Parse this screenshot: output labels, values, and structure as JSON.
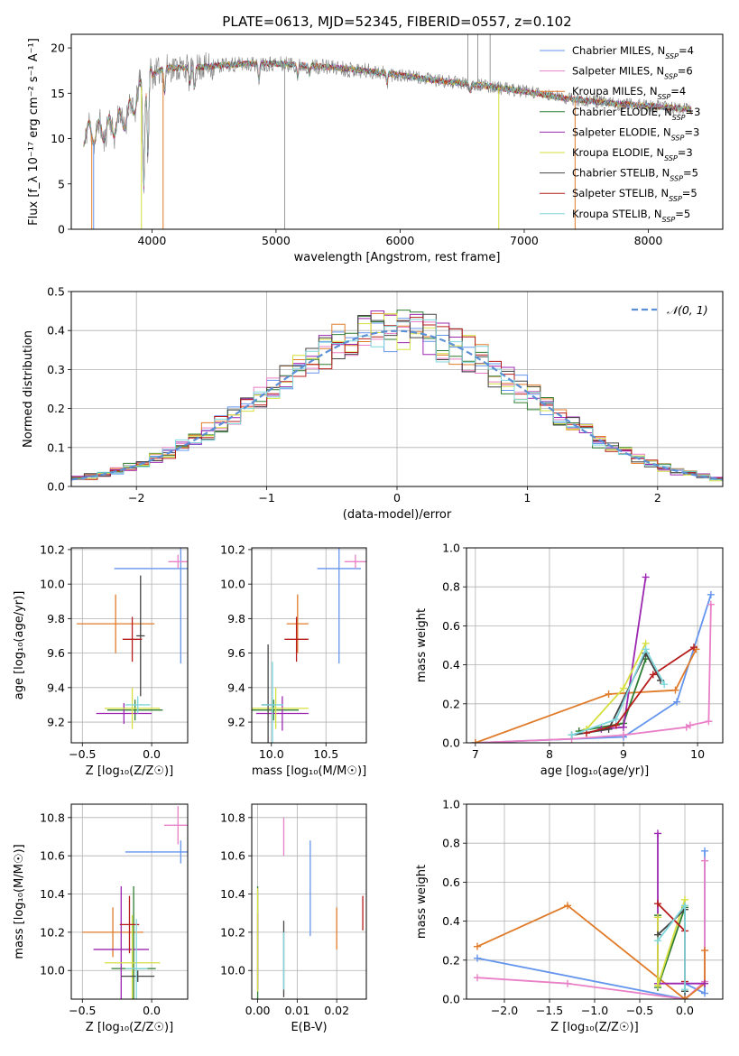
{
  "figure": {
    "title": "PLATE=0613, MJD=52345, FIBERID=0557, z=0.102"
  },
  "colors": {
    "Chabrier MILES": "#6495ed",
    "Salpeter MILES": "#e97fc6",
    "Kroupa MILES": "#e07b2a",
    "Chabrier ELODIE": "#2e7d32",
    "Salpeter ELODIE": "#9c27b0",
    "Kroupa ELODIE": "#d6df3f",
    "Chabrier STELIB": "#444444",
    "Salpeter STELIB": "#b71c1c",
    "Kroupa STELIB": "#7fd6dc",
    "spectrum": "#808080",
    "normal": "#5b8fd6",
    "grid": "#b0b0b0"
  },
  "chart_data": [
    {
      "id": "spectrum",
      "type": "line",
      "xlabel": "wavelength [Angstrom, rest frame]",
      "ylabel": "Flux [f_λ 10⁻¹⁷ erg cm⁻² s⁻¹ A⁻¹]",
      "xlim": [
        3350,
        8600
      ],
      "ylim": [
        0,
        21.5
      ],
      "xticks": [
        4000,
        5000,
        6000,
        7000,
        8000
      ],
      "yticks": [
        0,
        5,
        10,
        15,
        20
      ],
      "grid": false,
      "legend": "top-right",
      "legend_entries": [
        "Chabrier MILES, N_SSP=4",
        "Salpeter MILES, N_SSP=6",
        "Kroupa MILES, N_SSP=4",
        "Chabrier ELODIE, N_SSP=3",
        "Salpeter ELODIE, N_SSP=3",
        "Kroupa ELODIE, N_SSP=3",
        "Chabrier STELIB, N_SSP=5",
        "Salpeter STELIB, N_SSP=5",
        "Kroupa STELIB, N_SSP=5"
      ],
      "continuum": [
        [
          3450,
          10.5
        ],
        [
          3600,
          10.8
        ],
        [
          3700,
          11.5
        ],
        [
          3800,
          12.5
        ],
        [
          3900,
          15
        ],
        [
          4000,
          17
        ],
        [
          4100,
          17.8
        ],
        [
          4300,
          17.8
        ],
        [
          4500,
          18
        ],
        [
          4700,
          18.2
        ],
        [
          4900,
          18.3
        ],
        [
          5100,
          18.2
        ],
        [
          5300,
          18
        ],
        [
          5500,
          17.8
        ],
        [
          5700,
          17.5
        ],
        [
          5900,
          17.2
        ],
        [
          6100,
          16.8
        ],
        [
          6300,
          16.4
        ],
        [
          6500,
          16.1
        ],
        [
          6700,
          15.8
        ],
        [
          6900,
          15.4
        ],
        [
          7100,
          15
        ],
        [
          7300,
          14.5
        ],
        [
          7500,
          14.2
        ],
        [
          7700,
          13.9
        ],
        [
          7900,
          13.7
        ],
        [
          8100,
          13.5
        ],
        [
          8350,
          13.2
        ]
      ],
      "absorption_lines": [
        [
          3934,
          5
        ],
        [
          3969,
          7
        ],
        [
          4102,
          15
        ],
        [
          4304,
          16
        ],
        [
          4341,
          15.5
        ],
        [
          4861,
          16.5
        ],
        [
          5175,
          16.8
        ],
        [
          5270,
          17
        ],
        [
          5894,
          16.2
        ],
        [
          6563,
          15.2
        ],
        [
          8500,
          12.5
        ],
        [
          8542,
          12.3
        ],
        [
          8662,
          12.6
        ]
      ],
      "model_dropouts": [
        [
          3515,
          "#e07b2a"
        ],
        [
          3530,
          "#6495ed"
        ],
        [
          3915,
          "#d6df3f"
        ],
        [
          4090,
          "#e07b2a"
        ],
        [
          6795,
          "#d6df3f"
        ],
        [
          7410,
          "#e07b2a"
        ]
      ],
      "data_spikes": [
        [
          5070,
          0
        ],
        [
          6545,
          21.5
        ],
        [
          6625,
          21.5
        ],
        [
          6725,
          21.5
        ]
      ]
    },
    {
      "id": "residuals",
      "type": "histogram",
      "xlabel": "(data-model)/error",
      "ylabel": "Normed distribution",
      "xlim": [
        -2.5,
        2.5
      ],
      "ylim": [
        0,
        0.5
      ],
      "xticks": [
        -2,
        -1,
        0,
        1,
        2
      ],
      "yticks": [
        0,
        0.1,
        0.2,
        0.3,
        0.4,
        0.5
      ],
      "grid": true,
      "legend": "top-right",
      "legend_entries": [
        "𝒩(0, 1)"
      ],
      "bin_width": 0.1,
      "models": [
        "Chabrier MILES",
        "Salpeter MILES",
        "Kroupa MILES",
        "Chabrier ELODIE",
        "Salpeter ELODIE",
        "Kroupa ELODIE",
        "Chabrier STELIB",
        "Salpeter STELIB",
        "Kroupa STELIB"
      ]
    },
    {
      "id": "age-vs-Z",
      "type": "errorbar",
      "xlabel": "Z [log₁₀(Z/Z☉)]",
      "ylabel": "age  [log₁₀(age/yr)]",
      "xlim": [
        -0.58,
        0.26
      ],
      "ylim": [
        9.08,
        10.21
      ],
      "xticks": [
        -0.5,
        0.0
      ],
      "yticks": [
        9.2,
        9.4,
        9.6,
        9.8,
        10.0,
        10.2
      ],
      "grid": true,
      "points": [
        {
          "model": "Chabrier MILES",
          "x": 0.21,
          "y": 10.09,
          "xerr": 0.48,
          "yerr": 0.55
        },
        {
          "model": "Salpeter MILES",
          "x": 0.19,
          "y": 10.13,
          "xerr": 0.07,
          "yerr": 0.04
        },
        {
          "model": "Kroupa MILES",
          "x": -0.26,
          "y": 9.77,
          "xerr": 0.28,
          "yerr": 0.17
        },
        {
          "model": "Chabrier ELODIE",
          "x": -0.12,
          "y": 9.27,
          "xerr": 0.2,
          "yerr": 0.06
        },
        {
          "model": "Salpeter ELODIE",
          "x": -0.2,
          "y": 9.25,
          "xerr": 0.2,
          "yerr": 0.06
        },
        {
          "model": "Kroupa ELODIE",
          "x": -0.14,
          "y": 9.28,
          "xerr": 0.2,
          "yerr": 0.12
        },
        {
          "model": "Chabrier STELIB",
          "x": -0.08,
          "y": 9.7,
          "xerr": 0.03,
          "yerr": 0.35
        },
        {
          "model": "Salpeter STELIB",
          "x": -0.14,
          "y": 9.68,
          "xerr": 0.07,
          "yerr": 0.13
        },
        {
          "model": "Kroupa STELIB",
          "x": -0.1,
          "y": 9.3,
          "xerr": 0.09,
          "yerr": 0.05
        }
      ]
    },
    {
      "id": "age-vs-mass",
      "type": "errorbar",
      "xlabel": "mass [log₁₀(M/M☉)]",
      "ylabel": "",
      "xlim": [
        9.82,
        10.87
      ],
      "ylim": [
        9.08,
        10.21
      ],
      "xticks": [
        10.0,
        10.5
      ],
      "yticks": [
        9.2,
        9.4,
        9.6,
        9.8,
        10.0,
        10.2
      ],
      "grid": true,
      "points": [
        {
          "model": "Chabrier MILES",
          "x": 10.62,
          "y": 10.09,
          "xerr": 0.2,
          "yerr": 0.55
        },
        {
          "model": "Salpeter MILES",
          "x": 10.77,
          "y": 10.13,
          "xerr": 0.1,
          "yerr": 0.04
        },
        {
          "model": "Kroupa MILES",
          "x": 10.24,
          "y": 9.77,
          "xerr": 0.1,
          "yerr": 0.17
        },
        {
          "model": "Chabrier ELODIE",
          "x": 10.02,
          "y": 9.27,
          "xerr": 0.23,
          "yerr": 0.06
        },
        {
          "model": "Salpeter ELODIE",
          "x": 10.1,
          "y": 9.25,
          "xerr": 0.24,
          "yerr": 0.1
        },
        {
          "model": "Kroupa ELODIE",
          "x": 10.04,
          "y": 9.28,
          "xerr": 0.3,
          "yerr": 0.12
        },
        {
          "model": "Chabrier STELIB",
          "x": 9.97,
          "y": 9.3,
          "xerr": 0.06,
          "yerr": 0.35
        },
        {
          "model": "Salpeter STELIB",
          "x": 10.23,
          "y": 9.68,
          "xerr": 0.11,
          "yerr": 0.13
        },
        {
          "model": "Kroupa STELIB",
          "x": 10.01,
          "y": 9.3,
          "xerr": 0.1,
          "yerr": 0.25
        }
      ]
    },
    {
      "id": "weight-vs-age",
      "type": "line",
      "xlabel": "age  [log₁₀(age/yr)]",
      "ylabel": "mass weight",
      "xlim": [
        6.88,
        10.34
      ],
      "ylim": [
        0,
        1.0
      ],
      "xticks": [
        7,
        8,
        9,
        10
      ],
      "yticks": [
        0.0,
        0.2,
        0.4,
        0.6,
        0.8,
        1.0
      ],
      "grid": true,
      "series": [
        {
          "model": "Chabrier MILES",
          "x": [
            7.0,
            9.0,
            9.72,
            10.18
          ],
          "y": [
            0.0,
            0.03,
            0.21,
            0.76
          ]
        },
        {
          "model": "Salpeter MILES",
          "x": [
            7.0,
            8.3,
            9.0,
            9.85,
            9.9,
            10.15,
            10.18
          ],
          "y": [
            0.0,
            0.02,
            0.04,
            0.08,
            0.09,
            0.11,
            0.71
          ]
        },
        {
          "model": "Kroupa MILES",
          "x": [
            7.0,
            8.8,
            9.7,
            9.98
          ],
          "y": [
            0.0,
            0.25,
            0.27,
            0.48
          ]
        },
        {
          "model": "Chabrier ELODIE",
          "x": [
            8.4,
            9.0,
            9.3
          ],
          "y": [
            0.06,
            0.1,
            0.43
          ]
        },
        {
          "model": "Salpeter ELODIE",
          "x": [
            8.7,
            9.0,
            9.3
          ],
          "y": [
            0.07,
            0.08,
            0.85
          ]
        },
        {
          "model": "Kroupa ELODIE",
          "x": [
            8.5,
            9.0,
            9.3
          ],
          "y": [
            0.07,
            0.28,
            0.51
          ]
        },
        {
          "model": "Chabrier STELIB",
          "x": [
            8.3,
            8.8,
            9.3,
            9.5
          ],
          "y": [
            0.04,
            0.07,
            0.46,
            0.32
          ]
        },
        {
          "model": "Salpeter STELIB",
          "x": [
            8.5,
            8.9,
            9.4,
            9.95
          ],
          "y": [
            0.05,
            0.09,
            0.35,
            0.49
          ]
        },
        {
          "model": "Kroupa STELIB",
          "x": [
            8.3,
            8.9,
            9.3,
            9.55
          ],
          "y": [
            0.04,
            0.12,
            0.48,
            0.3
          ]
        }
      ]
    },
    {
      "id": "mass-vs-Z",
      "type": "errorbar",
      "xlabel": "Z [log₁₀(Z/Z☉)]",
      "ylabel": "mass [log₁₀(M/M☉)]",
      "xlim": [
        -0.58,
        0.26
      ],
      "ylim": [
        9.85,
        10.87
      ],
      "xticks": [
        -0.5,
        0.0
      ],
      "yticks": [
        10.0,
        10.2,
        10.4,
        10.6,
        10.8
      ],
      "grid": true,
      "points": [
        {
          "model": "Chabrier MILES",
          "x": 0.21,
          "y": 10.62,
          "xerr": 0.4,
          "yerr": 0.06
        },
        {
          "model": "Salpeter MILES",
          "x": 0.19,
          "y": 10.76,
          "xerr": 0.1,
          "yerr": 0.1
        },
        {
          "model": "Kroupa MILES",
          "x": -0.28,
          "y": 10.2,
          "xerr": 0.22,
          "yerr": 0.13
        },
        {
          "model": "Chabrier ELODIE",
          "x": -0.13,
          "y": 10.01,
          "xerr": 0.16,
          "yerr": 0.43
        },
        {
          "model": "Salpeter ELODIE",
          "x": -0.22,
          "y": 10.11,
          "xerr": 0.2,
          "yerr": 0.33
        },
        {
          "model": "Kroupa ELODIE",
          "x": -0.14,
          "y": 10.04,
          "xerr": 0.2,
          "yerr": 0.25
        },
        {
          "model": "Chabrier STELIB",
          "x": -0.1,
          "y": 9.97,
          "xerr": 0.12,
          "yerr": 0.03
        },
        {
          "model": "Salpeter STELIB",
          "x": -0.16,
          "y": 10.24,
          "xerr": 0.07,
          "yerr": 0.15
        },
        {
          "model": "Kroupa STELIB",
          "x": -0.11,
          "y": 10.01,
          "xerr": 0.08,
          "yerr": 0.26
        }
      ]
    },
    {
      "id": "mass-vs-ebv",
      "type": "errorbar",
      "xlabel": "E(B-V)",
      "ylabel": "",
      "xlim": [
        -0.0015,
        0.0275
      ],
      "ylim": [
        9.85,
        10.87
      ],
      "xticks": [
        0.0,
        0.01,
        0.02
      ],
      "yticks": [
        10.0,
        10.2,
        10.4,
        10.6,
        10.8
      ],
      "grid": true,
      "points": [
        {
          "model": "Chabrier MILES",
          "x": 0.0133,
          "y": 10.43,
          "xerr": 0,
          "yerr": 0.25
        },
        {
          "model": "Salpeter MILES",
          "x": 0.0066,
          "y": 10.7,
          "xerr": 0,
          "yerr": 0.1
        },
        {
          "model": "Kroupa MILES",
          "x": 0.02,
          "y": 10.22,
          "xerr": 0,
          "yerr": 0.11
        },
        {
          "model": "Chabrier ELODIE",
          "x": 0.0,
          "y": 10.1,
          "xerr": 0,
          "yerr": 0.34
        },
        {
          "model": "Salpeter ELODIE",
          "x": 0.0,
          "y": 10.1,
          "xerr": 0,
          "yerr": 0.2
        },
        {
          "model": "Kroupa ELODIE",
          "x": 0.0,
          "y": 10.16,
          "xerr": 0,
          "yerr": 0.27
        },
        {
          "model": "Chabrier STELIB",
          "x": 0.0066,
          "y": 10.06,
          "xerr": 0,
          "yerr": 0.2
        },
        {
          "model": "Salpeter STELIB",
          "x": 0.0266,
          "y": 10.3,
          "xerr": 0,
          "yerr": 0.09
        },
        {
          "model": "Kroupa STELIB",
          "x": 0.0066,
          "y": 10.05,
          "xerr": 0,
          "yerr": 0.15
        }
      ]
    },
    {
      "id": "weight-vs-Z",
      "type": "line",
      "xlabel": "Z [log₁₀(Z/Z☉)]",
      "ylabel": "mass weight",
      "xlim": [
        -2.42,
        0.42
      ],
      "ylim": [
        0,
        1.0
      ],
      "xticks": [
        -2.0,
        -1.5,
        -1.0,
        -0.5,
        0.0
      ],
      "yticks": [
        0.0,
        0.2,
        0.4,
        0.6,
        0.8,
        1.0
      ],
      "grid": true,
      "series": [
        {
          "model": "Chabrier MILES",
          "x": [
            -2.3,
            0.0,
            0.0,
            0.22,
            0.22
          ],
          "y": [
            0.21,
            0.0,
            0.08,
            0.03,
            0.76
          ]
        },
        {
          "model": "Salpeter MILES",
          "x": [
            -2.3,
            -1.3,
            0.0,
            0.22,
            0.22
          ],
          "y": [
            0.11,
            0.08,
            0.0,
            0.09,
            0.71
          ]
        },
        {
          "model": "Kroupa MILES",
          "x": [
            -2.3,
            -1.3,
            0.0,
            0.22,
            0.22
          ],
          "y": [
            0.27,
            0.48,
            0.0,
            0.08,
            0.25
          ]
        },
        {
          "model": "Chabrier ELODIE",
          "x": [
            -0.3,
            -0.3,
            0.0
          ],
          "y": [
            0.43,
            0.06,
            0.47
          ]
        },
        {
          "model": "Salpeter ELODIE",
          "x": [
            -0.3,
            -0.3,
            0.22
          ],
          "y": [
            0.85,
            0.08,
            0.08
          ]
        },
        {
          "model": "Kroupa ELODIE",
          "x": [
            -0.3,
            -0.3,
            0.0,
            0.0
          ],
          "y": [
            0.42,
            0.07,
            0.51,
            0.04
          ]
        },
        {
          "model": "Chabrier STELIB",
          "x": [
            -0.3,
            0.0,
            0.0
          ],
          "y": [
            0.33,
            0.46,
            0.04
          ]
        },
        {
          "model": "Salpeter STELIB",
          "x": [
            -0.3,
            0.0,
            0.0
          ],
          "y": [
            0.49,
            0.35,
            0.09
          ]
        },
        {
          "model": "Kroupa STELIB",
          "x": [
            -0.3,
            0.0,
            0.0
          ],
          "y": [
            0.3,
            0.48,
            0.05
          ]
        }
      ]
    }
  ]
}
